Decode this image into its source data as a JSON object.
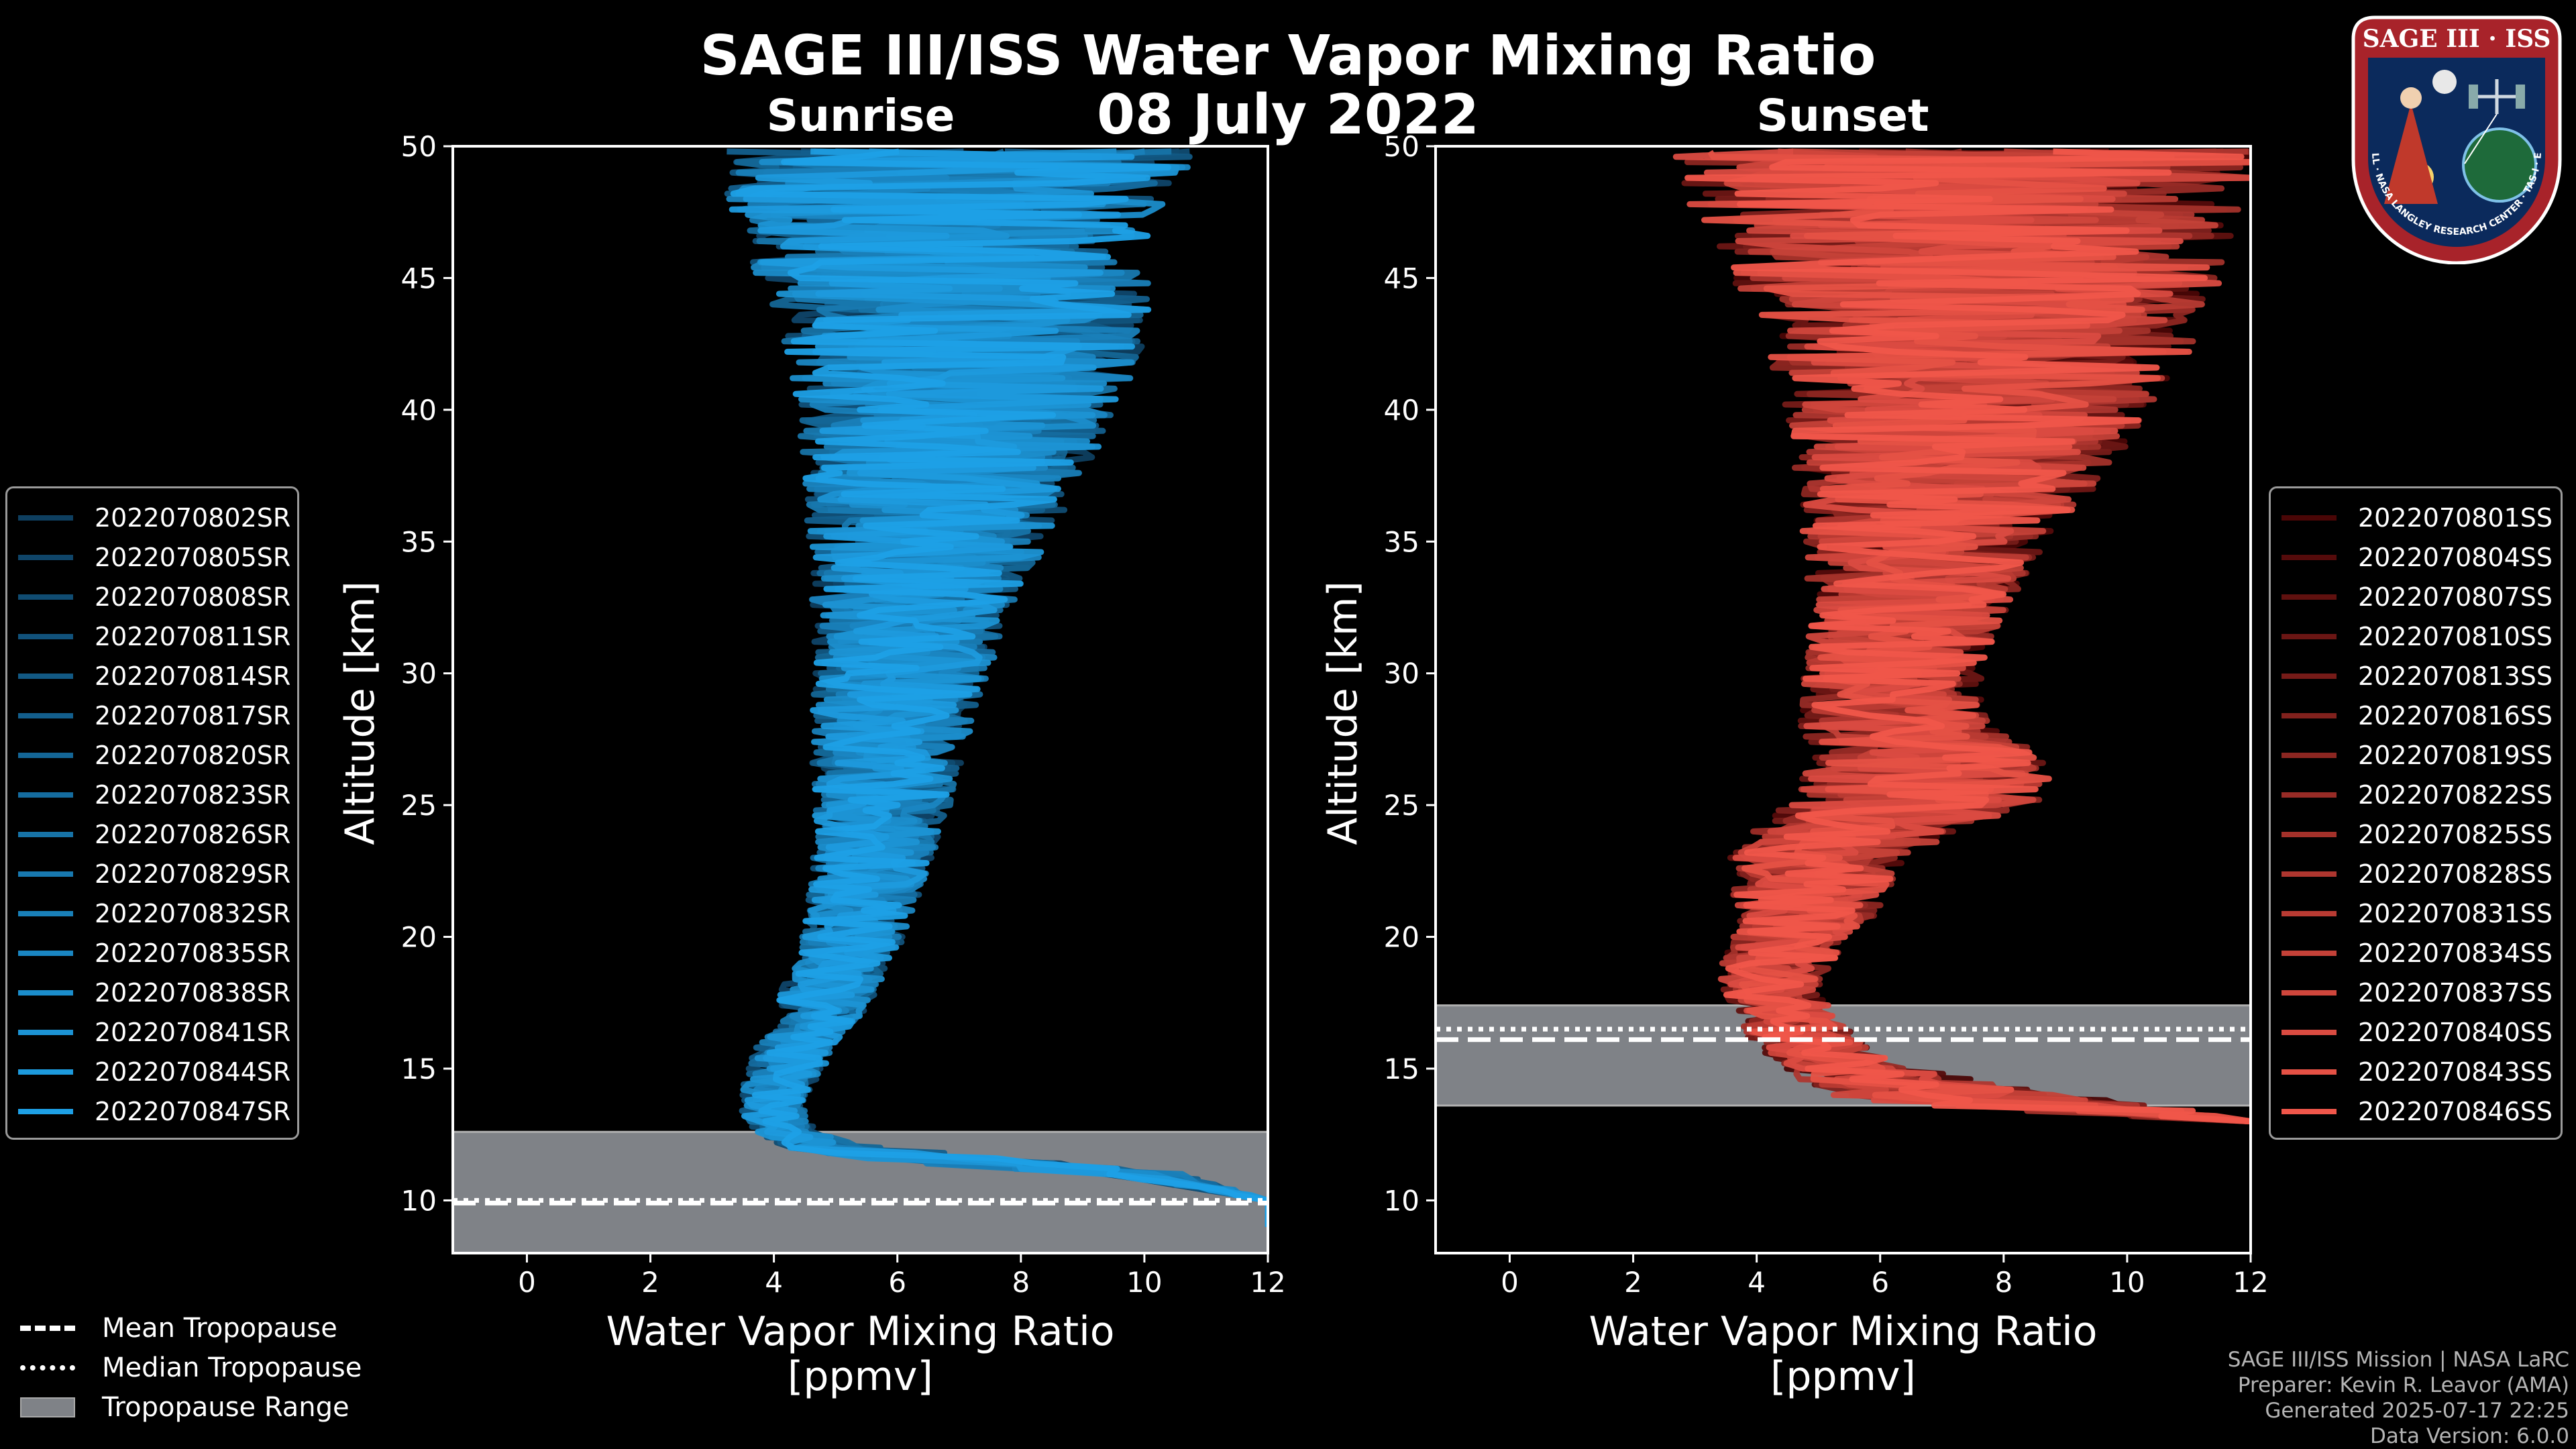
{
  "title": "SAGE III/ISS Water Vapor Mixing Ratio",
  "date": "08 July 2022",
  "panels": {
    "sunrise": {
      "title": "Sunrise"
    },
    "sunset": {
      "title": "Sunset"
    }
  },
  "axes": {
    "xlabel_line1": "Water Vapor Mixing Ratio",
    "xlabel_line2": "[ppmv]",
    "ylabel": "Altitude [km]",
    "xticks": [
      "0",
      "2",
      "4",
      "6",
      "8",
      "10",
      "12"
    ],
    "yticks": [
      "10",
      "15",
      "20",
      "25",
      "30",
      "35",
      "40",
      "45",
      "50"
    ]
  },
  "legend_sunrise": [
    "2022070802SR",
    "2022070805SR",
    "2022070808SR",
    "2022070811SR",
    "2022070814SR",
    "2022070817SR",
    "2022070820SR",
    "2022070823SR",
    "2022070826SR",
    "2022070829SR",
    "2022070832SR",
    "2022070835SR",
    "2022070838SR",
    "2022070841SR",
    "2022070844SR",
    "2022070847SR"
  ],
  "legend_sunset": [
    "2022070801SS",
    "2022070804SS",
    "2022070807SS",
    "2022070810SS",
    "2022070813SS",
    "2022070816SS",
    "2022070819SS",
    "2022070822SS",
    "2022070825SS",
    "2022070828SS",
    "2022070831SS",
    "2022070834SS",
    "2022070837SS",
    "2022070840SS",
    "2022070843SS",
    "2022070846SS"
  ],
  "tropopause_legend": {
    "mean": "Mean Tropopause",
    "median": "Median Tropopause",
    "range": "Tropopause Range"
  },
  "credits": {
    "line1": "SAGE III/ISS Mission | NASA LaRC",
    "line2": "Preparer: Kevin R. Leavor (AMA)",
    "line3": "Generated 2025-07-17 22:25",
    "line4": "Data Version: 6.0.0"
  },
  "logo": {
    "top_text": "SAGE III · ISS",
    "ring_text": "BALL · NASA LANGLEY RESEARCH CENTER · TAS-I · ESA"
  },
  "colors": {
    "sunrise_dark": "#0e3f60",
    "sunrise_light": "#1ea0e6",
    "sunset_dark": "#4a0606",
    "sunset_light": "#f0564a",
    "trop_range": "#7f8287"
  },
  "chart_data": [
    {
      "type": "line",
      "title": "Sunrise",
      "xlabel": "Water Vapor Mixing Ratio [ppmv]",
      "ylabel": "Altitude [km]",
      "xlim": [
        -1.2,
        12
      ],
      "ylim": [
        8,
        50
      ],
      "grid": false,
      "legend": "outside-left",
      "tropopause": {
        "mean": 9.9,
        "median": 10.0,
        "range": [
          8,
          12.6
        ]
      },
      "profile_shape": {
        "alt": [
          9,
          10,
          11,
          11.5,
          12,
          12.5,
          13,
          14,
          15,
          16,
          17,
          18,
          19,
          20,
          22,
          24,
          26,
          28,
          30,
          32,
          34,
          36,
          38,
          40,
          42,
          44,
          46,
          48,
          49.9
        ],
        "mean_ppmv": [
          12,
          12,
          10,
          7,
          5,
          4.3,
          4.0,
          4.0,
          4.2,
          4.4,
          4.7,
          4.9,
          5.1,
          5.3,
          5.5,
          5.7,
          5.8,
          5.9,
          6.1,
          6.2,
          6.4,
          6.6,
          6.8,
          7.0,
          7.1,
          7.0,
          6.8,
          6.9,
          7.0
        ],
        "spread_ppmv": [
          0,
          0,
          0.5,
          1,
          0.6,
          0.4,
          0.4,
          0.4,
          0.5,
          0.5,
          0.55,
          0.6,
          0.6,
          0.65,
          0.7,
          0.8,
          0.9,
          1.0,
          1.1,
          1.2,
          1.4,
          1.6,
          1.8,
          2.0,
          2.2,
          2.4,
          2.5,
          2.8,
          3.0
        ]
      },
      "series_names_key": "legend_sunrise"
    },
    {
      "type": "line",
      "title": "Sunset",
      "xlabel": "Water Vapor Mixing Ratio [ppmv]",
      "ylabel": "Altitude [km]",
      "xlim": [
        -1.2,
        12
      ],
      "ylim": [
        8,
        50
      ],
      "grid": false,
      "legend": "outside-right",
      "tropopause": {
        "mean": 16.1,
        "median": 16.5,
        "range": [
          13.6,
          17.4
        ]
      },
      "profile_shape": {
        "alt": [
          13,
          13.5,
          14,
          15,
          16,
          17,
          18,
          19,
          20,
          21,
          22,
          23,
          24,
          25,
          26,
          27,
          28,
          30,
          32,
          34,
          36,
          38,
          40,
          42,
          44,
          46,
          48,
          49.9
        ],
        "mean_ppmv": [
          12,
          9,
          7,
          5.5,
          4.8,
          4.5,
          4.2,
          4.3,
          4.6,
          4.8,
          4.9,
          5.0,
          5.6,
          6.5,
          6.8,
          6.8,
          6.2,
          6.2,
          6.4,
          6.6,
          6.9,
          7.2,
          7.4,
          7.6,
          7.6,
          7.5,
          7.4,
          7.4
        ],
        "spread_ppmv": [
          0,
          1.5,
          1.5,
          0.8,
          0.7,
          0.6,
          0.6,
          0.7,
          0.8,
          0.9,
          1.0,
          1.1,
          1.3,
          1.6,
          1.6,
          1.4,
          1.2,
          1.1,
          1.2,
          1.4,
          1.7,
          2.0,
          2.3,
          2.6,
          2.9,
          3.2,
          3.5,
          3.8
        ]
      },
      "series_names_key": "legend_sunset"
    }
  ]
}
